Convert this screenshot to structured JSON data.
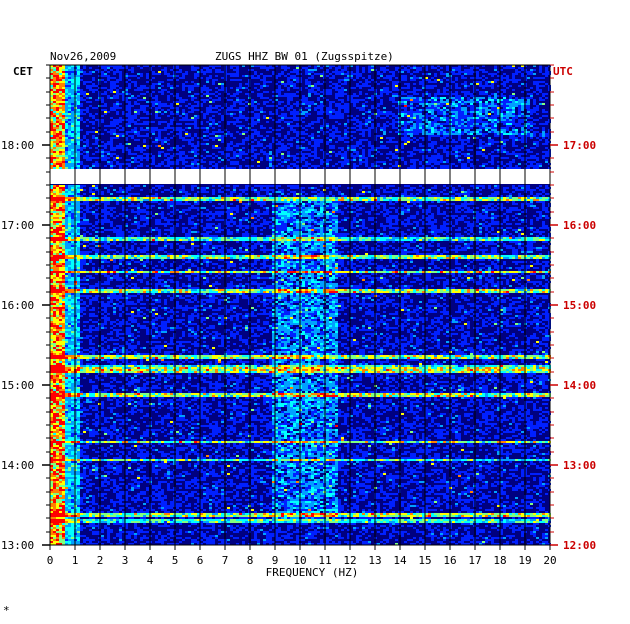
{
  "chart_data": {
    "type": "heatmap",
    "title_date": "Nov26,2009",
    "title_station": "ZUGS HHZ BW 01 (Zugsspitze)",
    "xlabel": "FREQUENCY (HZ)",
    "xlim": [
      0,
      20
    ],
    "x_ticks": [
      "0",
      "1",
      "2",
      "3",
      "4",
      "5",
      "6",
      "7",
      "8",
      "9",
      "10",
      "11",
      "12",
      "13",
      "14",
      "15",
      "16",
      "17",
      "18",
      "19",
      "20"
    ],
    "left_axis_label": "CET",
    "right_axis_label": "UTC",
    "left_ticks": [
      "18:00",
      "17:00",
      "16:00",
      "15:00",
      "14:00",
      "13:00"
    ],
    "right_ticks": [
      "17:00",
      "16:00",
      "15:00",
      "14:00",
      "13:00",
      "12:00"
    ],
    "time_range_cet": [
      "13:00",
      "18:53"
    ],
    "data_gap_cet": [
      "17:42",
      "17:48"
    ],
    "colormap": [
      "#000080",
      "#0000c8",
      "#0020ff",
      "#00a0ff",
      "#00ffff",
      "#80ff80",
      "#ffff00",
      "#ff8000",
      "#ff0000"
    ],
    "background_color": "#000080",
    "right_axis_color": "#cc0000",
    "left_axis_color": "#000000",
    "grid": true,
    "footer_mark": "*"
  }
}
